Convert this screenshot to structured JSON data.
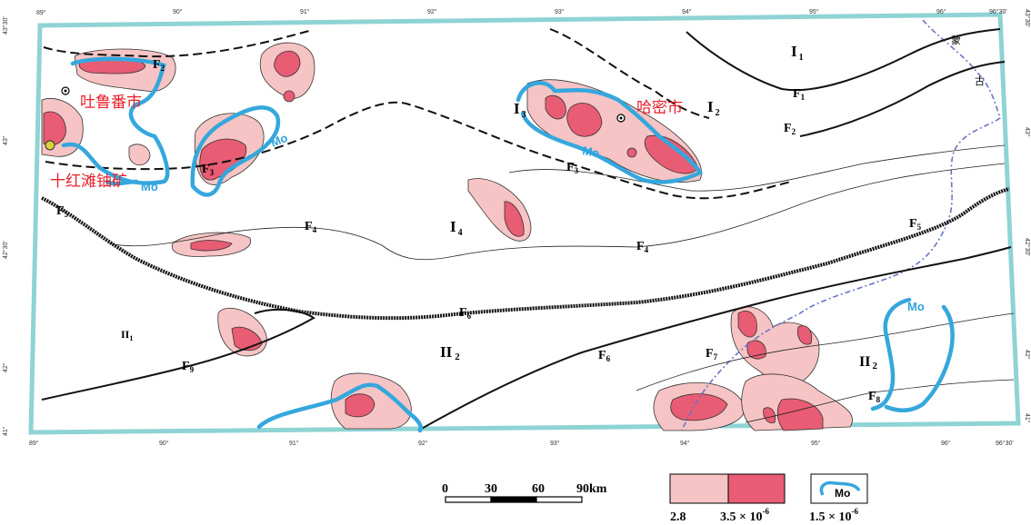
{
  "map": {
    "cities": {
      "turpan": "吐鲁番市",
      "hami": "哈密市",
      "mine": "十红滩铀矿"
    },
    "region_mark": [
      "蒙",
      "古"
    ],
    "zones": {
      "I1": {
        "main": "I",
        "sub": "1"
      },
      "I2": {
        "main": "I",
        "sub": "2"
      },
      "I3": {
        "main": "I",
        "sub": "3"
      },
      "I4": {
        "main": "I",
        "sub": "4"
      },
      "II1": {
        "main": "II",
        "sub": "1"
      },
      "II2a": {
        "main": "II",
        "sub": "2"
      },
      "II2b": {
        "main": "II",
        "sub": "2"
      }
    },
    "faults": {
      "F1": {
        "main": "F",
        "sub": "1"
      },
      "F2a": {
        "main": "F",
        "sub": "2"
      },
      "F2b": {
        "main": "F",
        "sub": "2"
      },
      "F3a": {
        "main": "F",
        "sub": "3"
      },
      "F3b": {
        "main": "F",
        "sub": "3"
      },
      "F4a": {
        "main": "F",
        "sub": "4"
      },
      "F4b": {
        "main": "F",
        "sub": "4"
      },
      "F5a": {
        "main": "F",
        "sub": "5"
      },
      "F5b": {
        "main": "F",
        "sub": "5"
      },
      "F6": {
        "main": "F",
        "sub": "6"
      },
      "F6b": {
        "main": "F",
        "sub": "6"
      },
      "F7": {
        "main": "F",
        "sub": "7"
      },
      "F8": {
        "main": "F",
        "sub": "8"
      },
      "F9": {
        "main": "F",
        "sub": "9"
      }
    },
    "mo_label": "Mo",
    "ticks_top": [
      "89°",
      "90°",
      "91°",
      "92°",
      "93°",
      "94°",
      "95°",
      "96°",
      "96°30'"
    ],
    "ticks_bottom": [
      "89°",
      "90°",
      "91°",
      "92°",
      "93°",
      "94°",
      "95°",
      "96°",
      "96°30'"
    ],
    "ticks_left": [
      "43°30'",
      "43°",
      "42°30'",
      "42°",
      "41°30'",
      "41°"
    ],
    "ticks_right": [
      "43°30'",
      "43°",
      "42°30'",
      "42°",
      "41°30'",
      "41°"
    ]
  },
  "legend": {
    "scale": {
      "labels": [
        "0",
        "30",
        "60",
        "90km"
      ]
    },
    "anomaly": {
      "low": "2.8",
      "high": "3.5 × 10",
      "high_exp": "-6"
    },
    "mo_box": {
      "label": "Mo",
      "value": "1.5 × 10",
      "exp": "-6"
    }
  },
  "colors": {
    "border": "#8fd3d4",
    "mo_line": "#35a7dd",
    "anomaly_light": "#f6c4c4",
    "anomaly_dark": "#e85c74",
    "boundary": "#6a72c8",
    "city_text": "#e8202a"
  }
}
